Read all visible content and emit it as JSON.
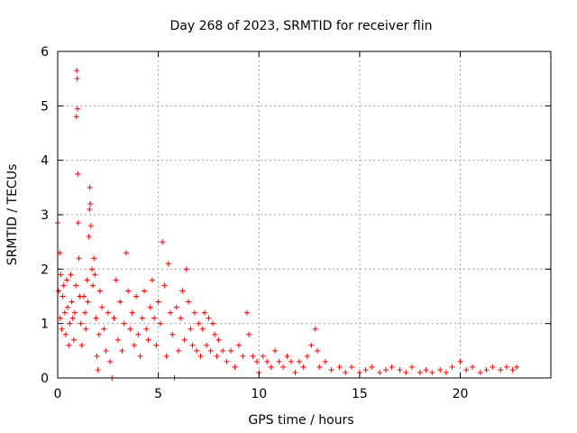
{
  "chart_data": {
    "type": "scatter",
    "title": "Day 268 of 2023, SRMTID for receiver flin",
    "xlabel": "GPS time / hours",
    "ylabel": "SRMTID / TECUs",
    "xlim": [
      0,
      24.5
    ],
    "ylim": [
      0,
      6
    ],
    "xticks": [
      0,
      5,
      10,
      15,
      20
    ],
    "yticks": [
      0,
      1,
      2,
      3,
      4,
      5,
      6
    ],
    "grid": true,
    "marker": "plus",
    "color": "#ff0000",
    "series": [
      {
        "name": "SRMTID",
        "points": [
          [
            0.0,
            2.85
          ],
          [
            0.05,
            1.6
          ],
          [
            0.1,
            2.3
          ],
          [
            0.12,
            1.1
          ],
          [
            0.15,
            1.9
          ],
          [
            0.2,
            0.9
          ],
          [
            0.25,
            1.5
          ],
          [
            0.3,
            1.7
          ],
          [
            0.35,
            1.2
          ],
          [
            0.4,
            0.8
          ],
          [
            0.45,
            1.8
          ],
          [
            0.5,
            1.3
          ],
          [
            0.55,
            0.6
          ],
          [
            0.6,
            1.0
          ],
          [
            0.65,
            1.9
          ],
          [
            0.7,
            1.4
          ],
          [
            0.75,
            1.1
          ],
          [
            0.8,
            0.7
          ],
          [
            0.85,
            1.2
          ],
          [
            0.9,
            1.7
          ],
          [
            0.93,
            4.8
          ],
          [
            0.95,
            5.65
          ],
          [
            0.97,
            5.5
          ],
          [
            0.98,
            4.95
          ],
          [
            1.0,
            3.75
          ],
          [
            1.02,
            2.85
          ],
          [
            1.05,
            2.2
          ],
          [
            1.1,
            1.5
          ],
          [
            1.15,
            1.0
          ],
          [
            1.2,
            0.6
          ],
          [
            1.3,
            1.5
          ],
          [
            1.35,
            1.2
          ],
          [
            1.4,
            0.9
          ],
          [
            1.45,
            1.8
          ],
          [
            1.5,
            1.4
          ],
          [
            1.55,
            2.6
          ],
          [
            1.58,
            3.1
          ],
          [
            1.6,
            3.5
          ],
          [
            1.62,
            3.2
          ],
          [
            1.65,
            2.8
          ],
          [
            1.7,
            2.0
          ],
          [
            1.75,
            1.7
          ],
          [
            1.8,
            2.2
          ],
          [
            1.85,
            1.9
          ],
          [
            1.9,
            1.1
          ],
          [
            1.95,
            0.4
          ],
          [
            2.0,
            0.15
          ],
          [
            2.05,
            0.8
          ],
          [
            2.1,
            1.6
          ],
          [
            2.2,
            1.3
          ],
          [
            2.3,
            0.9
          ],
          [
            2.4,
            0.5
          ],
          [
            2.5,
            1.2
          ],
          [
            2.6,
            0.3
          ],
          [
            2.7,
            0.0
          ],
          [
            2.8,
            1.1
          ],
          [
            2.9,
            1.8
          ],
          [
            3.0,
            0.7
          ],
          [
            3.1,
            1.4
          ],
          [
            3.2,
            0.5
          ],
          [
            3.3,
            1.0
          ],
          [
            3.4,
            2.3
          ],
          [
            3.5,
            1.6
          ],
          [
            3.6,
            0.9
          ],
          [
            3.7,
            1.2
          ],
          [
            3.8,
            0.6
          ],
          [
            3.9,
            1.5
          ],
          [
            4.0,
            0.8
          ],
          [
            4.1,
            0.4
          ],
          [
            4.2,
            1.1
          ],
          [
            4.3,
            1.6
          ],
          [
            4.4,
            0.9
          ],
          [
            4.5,
            0.7
          ],
          [
            4.6,
            1.3
          ],
          [
            4.7,
            1.8
          ],
          [
            4.8,
            1.1
          ],
          [
            4.9,
            0.6
          ],
          [
            5.0,
            1.4
          ],
          [
            5.1,
            1.0
          ],
          [
            5.2,
            2.5
          ],
          [
            5.3,
            1.7
          ],
          [
            5.4,
            0.4
          ],
          [
            5.5,
            2.1
          ],
          [
            5.6,
            1.2
          ],
          [
            5.7,
            0.8
          ],
          [
            5.8,
            0.0
          ],
          [
            5.9,
            1.3
          ],
          [
            6.0,
            0.5
          ],
          [
            6.1,
            1.1
          ],
          [
            6.2,
            1.6
          ],
          [
            6.3,
            0.7
          ],
          [
            6.4,
            2.0
          ],
          [
            6.5,
            1.4
          ],
          [
            6.6,
            0.9
          ],
          [
            6.7,
            0.6
          ],
          [
            6.8,
            1.2
          ],
          [
            6.9,
            0.5
          ],
          [
            7.0,
            1.0
          ],
          [
            7.1,
            0.4
          ],
          [
            7.2,
            0.9
          ],
          [
            7.3,
            1.2
          ],
          [
            7.4,
            0.6
          ],
          [
            7.5,
            1.1
          ],
          [
            7.6,
            0.5
          ],
          [
            7.7,
            1.0
          ],
          [
            7.8,
            0.8
          ],
          [
            7.9,
            0.4
          ],
          [
            8.0,
            0.7
          ],
          [
            8.2,
            0.5
          ],
          [
            8.4,
            0.3
          ],
          [
            8.6,
            0.5
          ],
          [
            8.8,
            0.2
          ],
          [
            9.0,
            0.6
          ],
          [
            9.2,
            0.4
          ],
          [
            9.4,
            1.2
          ],
          [
            9.5,
            0.8
          ],
          [
            9.7,
            0.4
          ],
          [
            9.9,
            0.3
          ],
          [
            10.0,
            0.1
          ],
          [
            10.2,
            0.4
          ],
          [
            10.4,
            0.3
          ],
          [
            10.6,
            0.2
          ],
          [
            10.8,
            0.5
          ],
          [
            11.0,
            0.3
          ],
          [
            11.2,
            0.2
          ],
          [
            11.4,
            0.4
          ],
          [
            11.6,
            0.3
          ],
          [
            11.8,
            0.1
          ],
          [
            12.0,
            0.3
          ],
          [
            12.2,
            0.2
          ],
          [
            12.4,
            0.4
          ],
          [
            12.6,
            0.6
          ],
          [
            12.8,
            0.9
          ],
          [
            12.9,
            0.5
          ],
          [
            13.0,
            0.2
          ],
          [
            13.3,
            0.3
          ],
          [
            13.6,
            0.15
          ],
          [
            14.0,
            0.2
          ],
          [
            14.3,
            0.1
          ],
          [
            14.6,
            0.2
          ],
          [
            15.0,
            0.1
          ],
          [
            15.3,
            0.15
          ],
          [
            15.6,
            0.2
          ],
          [
            16.0,
            0.1
          ],
          [
            16.3,
            0.15
          ],
          [
            16.6,
            0.2
          ],
          [
            17.0,
            0.15
          ],
          [
            17.3,
            0.1
          ],
          [
            17.6,
            0.2
          ],
          [
            18.0,
            0.1
          ],
          [
            18.3,
            0.15
          ],
          [
            18.6,
            0.1
          ],
          [
            19.0,
            0.15
          ],
          [
            19.3,
            0.1
          ],
          [
            19.6,
            0.2
          ],
          [
            20.0,
            0.3
          ],
          [
            20.3,
            0.15
          ],
          [
            20.6,
            0.2
          ],
          [
            21.0,
            0.1
          ],
          [
            21.3,
            0.15
          ],
          [
            21.6,
            0.2
          ],
          [
            22.0,
            0.15
          ],
          [
            22.3,
            0.2
          ],
          [
            22.6,
            0.15
          ],
          [
            22.8,
            0.2
          ]
        ]
      }
    ]
  }
}
